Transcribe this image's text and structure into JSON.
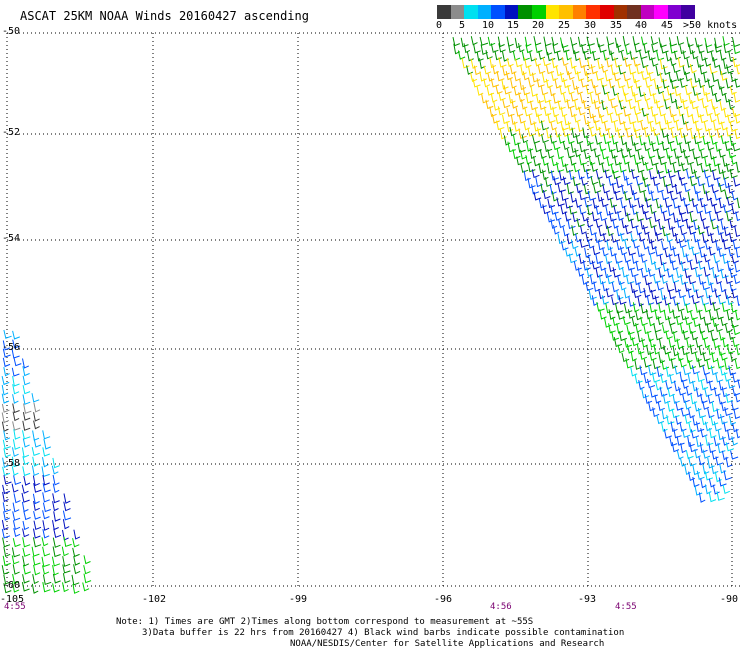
{
  "title": "ASCAT 25KM NOAA Winds 20160427 ascending",
  "colorbar": {
    "colors": [
      "#3a3a3a",
      "#8c8c8c",
      "#00e0f0",
      "#00b0ff",
      "#0050ff",
      "#0010c0",
      "#009000",
      "#00d000",
      "#ffe400",
      "#ffc000",
      "#ff8000",
      "#ff3000",
      "#e00000",
      "#a03000",
      "#703020",
      "#c000c0",
      "#ff00ff",
      "#8000d0",
      "#4000a0"
    ],
    "labels": [
      "0",
      "5",
      "10",
      "15",
      "20",
      "25",
      "30",
      "35",
      "40",
      "45",
      ">50 knots"
    ]
  },
  "axes": {
    "lat_labels": [
      "-50",
      "-52",
      "-54",
      "-56",
      "-58",
      "-60"
    ],
    "lon_labels": [
      "-105",
      "-102",
      "-99",
      "-96",
      "-93",
      "-90"
    ],
    "lat_range": [
      -60,
      -50
    ],
    "lon_range": [
      -105,
      -90
    ]
  },
  "times": [
    "4:55",
    "4:56",
    "4:55"
  ],
  "notes": [
    "Note: 1) Times are GMT 2)Times along bottom correspond to measurement at ~55S",
    "3)Data buffer is 22 hrs from 20160427 4) Black wind barbs indicate possible contamination",
    "NOAA/NESDIS/Center for Satellite Applications and Research"
  ]
}
